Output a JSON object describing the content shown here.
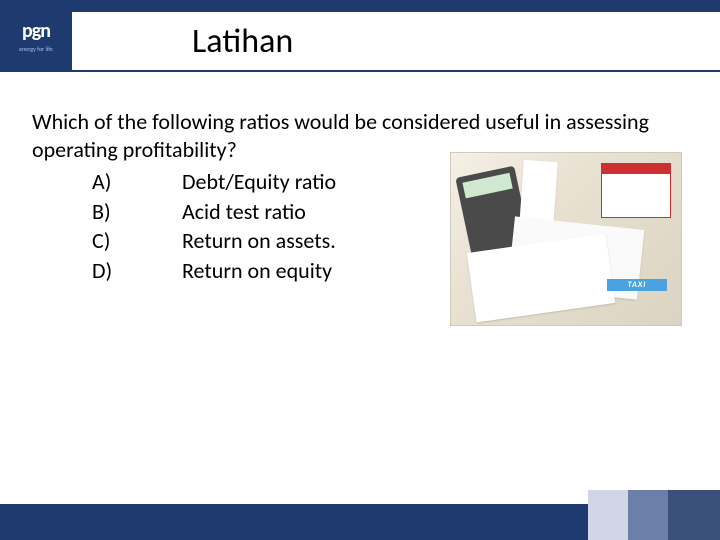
{
  "colors": {
    "brand_navy": "#1f3a6e",
    "background": "#ffffff",
    "text": "#000000",
    "footer_block_light": "#d0d6e6",
    "footer_block_mid": "#6b7fa8",
    "footer_block_dark": "#3a4f7a"
  },
  "logo": {
    "monogram": "pgn",
    "tagline": "energy for life"
  },
  "title": "Latihan",
  "question": "Which of the following ratios would be considered useful in assessing operating profitability?",
  "options": [
    {
      "letter": "A)",
      "text": "Debt/Equity ratio"
    },
    {
      "letter": "B)",
      "text": "Acid test ratio"
    },
    {
      "letter": "C)",
      "text": "Return on assets."
    },
    {
      "letter": "D)",
      "text": "Return on equity"
    }
  ],
  "image": {
    "description": "desk-photo-calculator-receipts-calendar",
    "taxi_label": "TAXI"
  },
  "typography": {
    "title_fontsize": 34,
    "body_fontsize": 22,
    "font_family": "Calibri"
  }
}
